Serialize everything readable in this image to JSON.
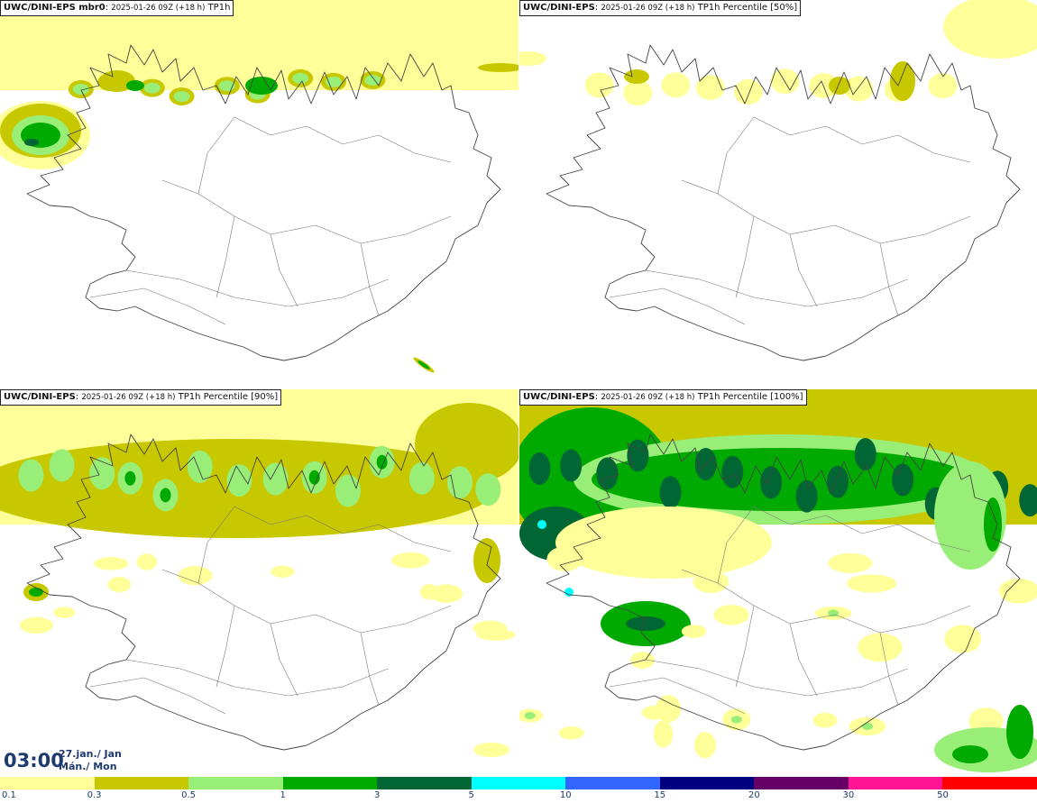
{
  "panels": [
    {
      "model": "UWC/DINI-EPS mbr0",
      "run": "2025-01-26 09Z (+18 h)",
      "field": "TP1h",
      "intensity": "low"
    },
    {
      "model": "UWC/DINI-EPS",
      "run": "2025-01-26 09Z (+18 h)",
      "field": "TP1h Percentile [50%]",
      "intensity": "minimal"
    },
    {
      "model": "UWC/DINI-EPS",
      "run": "2025-01-26 09Z (+18 h)",
      "field": "TP1h Percentile [90%]",
      "intensity": "medium"
    },
    {
      "model": "UWC/DINI-EPS",
      "run": "2025-01-26 09Z (+18 h)",
      "field": "TP1h Percentile [100%]",
      "intensity": "high"
    }
  ],
  "valid_time": {
    "time": "03:00",
    "date_line1": "27.jan./ Jan",
    "date_line2": "Mán./ Mon"
  },
  "legend": {
    "colors": [
      "#ffff99",
      "#c8c800",
      "#99ee77",
      "#00aa00",
      "#006633",
      "#00ffff",
      "#3366ff",
      "#000080",
      "#660066",
      "#ff1493",
      "#ff0000"
    ],
    "labels": [
      "0.1",
      "0.3",
      "0.5",
      "1",
      "3",
      "5",
      "10",
      "15",
      "20",
      "30",
      "50"
    ]
  },
  "palette": {
    "yellow": "#ffff99",
    "olive": "#c8c800",
    "lightgreen": "#99ee77",
    "green": "#00aa00",
    "darkgreen": "#006633",
    "cyan": "#00ffff",
    "coast": "#444444"
  }
}
